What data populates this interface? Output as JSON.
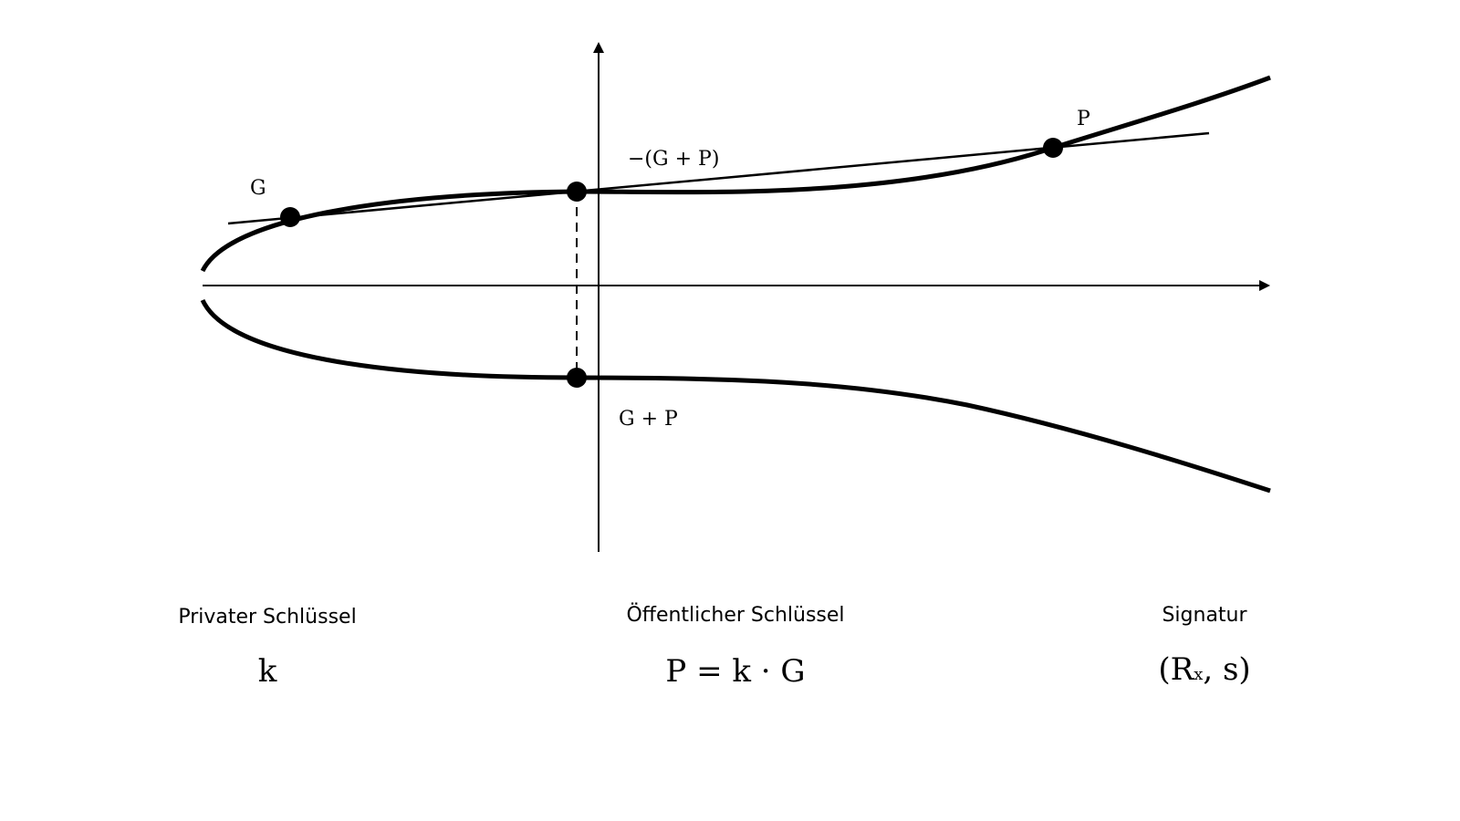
{
  "diagram": {
    "labels": {
      "g": "G",
      "p": "P",
      "neg_sum": "−(G + P)",
      "sum": "G + P"
    }
  },
  "captions": {
    "private_key": {
      "title": "Privater Schlüssel",
      "formula": "k"
    },
    "public_key": {
      "title": "Öffentlicher Schlüssel",
      "formula": "P = k · G"
    },
    "signature": {
      "title": "Signatur",
      "formula_main": "(R",
      "formula_sub": "x",
      "formula_tail": ", s)"
    }
  }
}
